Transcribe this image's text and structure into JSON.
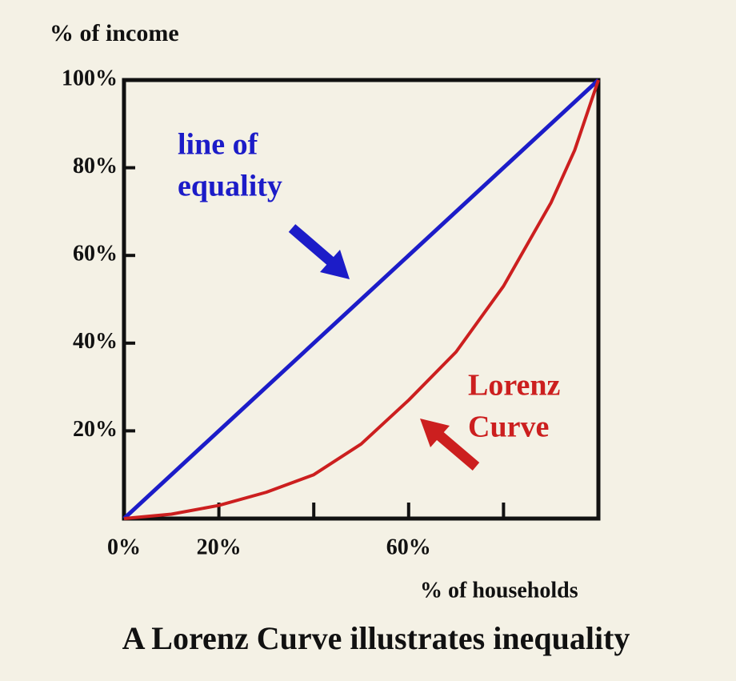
{
  "chart_data": {
    "type": "line",
    "title": "A Lorenz Curve illustrates inequality",
    "y_label": "% of income",
    "x_label": "% of households",
    "xlim": [
      0,
      100
    ],
    "ylim": [
      0,
      100
    ],
    "xticks": [
      {
        "value": 0,
        "label": "0%"
      },
      {
        "value": 20,
        "label": "20%"
      },
      {
        "value": 40,
        "label": null
      },
      {
        "value": 60,
        "label": "60%"
      },
      {
        "value": 80,
        "label": null
      }
    ],
    "yticks": [
      {
        "value": 20,
        "label": "20%"
      },
      {
        "value": 40,
        "label": "40%"
      },
      {
        "value": 60,
        "label": "60%"
      },
      {
        "value": 80,
        "label": "80%"
      },
      {
        "value": 100,
        "label": "100%"
      }
    ],
    "series": [
      {
        "name": "line of equality",
        "color": "#1c1cc8",
        "x": [
          0,
          100
        ],
        "values": [
          0,
          100
        ]
      },
      {
        "name": "Lorenz Curve",
        "color": "#cc1f1f",
        "x": [
          0,
          10,
          20,
          30,
          40,
          50,
          60,
          70,
          80,
          90,
          95,
          100
        ],
        "values": [
          0,
          1,
          3,
          6,
          10,
          17,
          27,
          38,
          53,
          72,
          84,
          100
        ]
      }
    ],
    "annotations": [
      {
        "lines": [
          "line of",
          "equality"
        ],
        "color": "#1c1cc8"
      },
      {
        "lines": [
          "Lorenz",
          "Curve"
        ],
        "color": "#cc1f1f"
      }
    ]
  }
}
